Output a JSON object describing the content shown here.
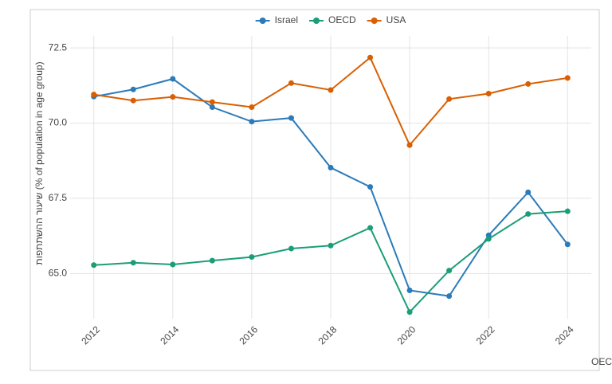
{
  "chart_data": {
    "type": "line",
    "y_label": "שיעור ההשתתפות (% of population in age group)",
    "caption": "מקור נתונים: OECD",
    "x": [
      2012,
      2013,
      2014,
      2015,
      2016,
      2017,
      2018,
      2019,
      2020,
      2021,
      2022,
      2023,
      2024
    ],
    "series": [
      {
        "name": "Israel",
        "color": "#2b7bba",
        "values": [
          70.88,
          71.12,
          71.47,
          70.53,
          70.05,
          70.17,
          68.52,
          67.88,
          64.44,
          64.25,
          66.27,
          67.7,
          65.97
        ]
      },
      {
        "name": "OECD",
        "color": "#1b9e77",
        "values": [
          65.28,
          65.36,
          65.3,
          65.43,
          65.55,
          65.83,
          65.93,
          66.52,
          63.72,
          65.1,
          66.15,
          66.98,
          67.07
        ]
      },
      {
        "name": "USA",
        "color": "#d95f02",
        "values": [
          70.95,
          70.75,
          70.87,
          70.7,
          70.53,
          71.33,
          71.1,
          72.18,
          69.27,
          70.8,
          70.98,
          71.3,
          71.5
        ]
      }
    ],
    "xlim": [
      2011.4,
      2024.6
    ],
    "xticks": [
      2012,
      2014,
      2016,
      2018,
      2020,
      2022,
      2024
    ],
    "ylim": [
      63.5,
      72.9
    ],
    "yticks": [
      {
        "value": 65,
        "label": "65.0"
      },
      67.5,
      {
        "value": 70,
        "label": "70.0"
      },
      72.5
    ],
    "grid": true,
    "legend_position": "top"
  }
}
